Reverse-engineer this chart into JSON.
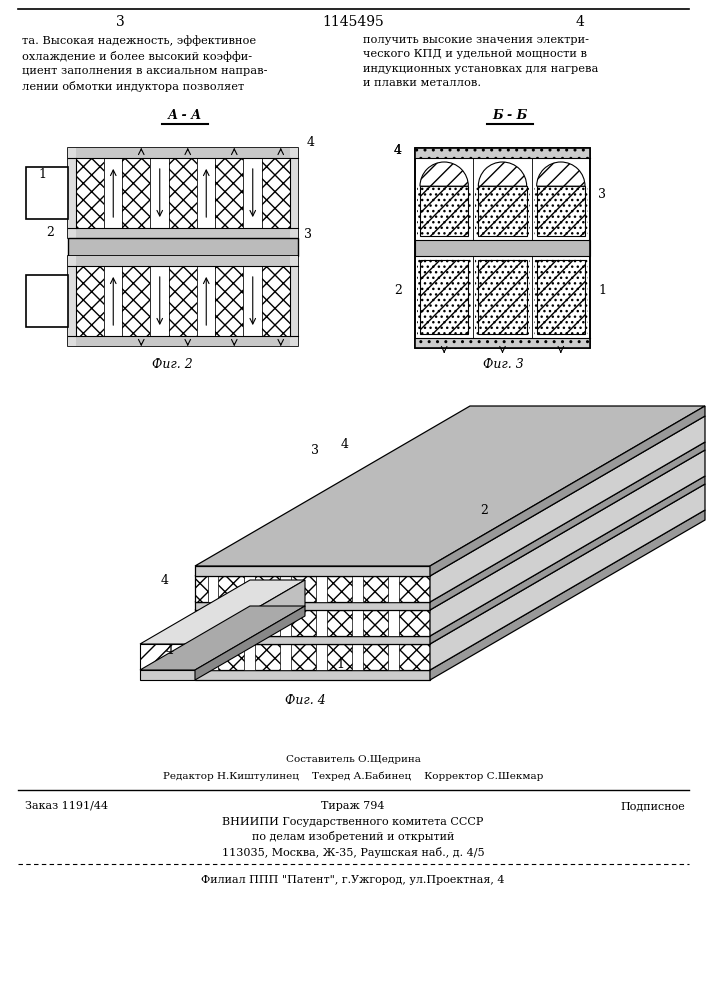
{
  "page_number_left": "3",
  "page_number_center": "1145495",
  "page_number_right": "4",
  "text_left": "та. Высокая надежность, эффективное\nохлаждение и более высокий коэффи-\nциент заполнения в аксиальном направ-\nлении обмотки индуктора позволяет",
  "text_right": "получить высокие значения электри-\nческого КПД и удельной мощности в\nиндукционных установках для нагрева\nи плавки металлов.",
  "fig2_label": "Фиг. 2",
  "fig3_label": "Фиг. 3",
  "fig4_label": "Фиг. 4",
  "section_aa": "А - А",
  "section_bb": "Б - Б",
  "bottom_line1_left": "Заказ 1191/44",
  "bottom_line1_center": "Тираж 794",
  "bottom_line1_right": "Подписное",
  "bottom_line2": "ВНИИПИ Государственного комитета СССР",
  "bottom_line3": "по делам изобретений и открытий",
  "bottom_line4": "113035, Москва, Ж-35, Раушская наб., д. 4/5",
  "bottom_line5": "Филиал ППП \"Патент\", г.Ужгород, ул.Проектная, 4",
  "editor_label": "Составитель О.Щедрина",
  "editor_line": "Редактор Н.Киштулинец    Техред А.Бабинец    Корректор С.Шекмар",
  "bg_color": "#ffffff"
}
